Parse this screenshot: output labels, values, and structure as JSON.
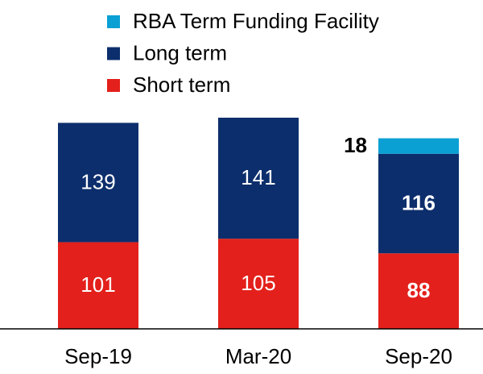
{
  "chart_data": {
    "type": "stacked_bar",
    "categories": [
      "Sep-19",
      "Mar-20",
      "Sep-20"
    ],
    "series": [
      {
        "name": "Short term",
        "color": "#e3201b",
        "values": [
          101,
          105,
          88
        ]
      },
      {
        "name": "Long term",
        "color": "#0c2e6c",
        "values": [
          139,
          141,
          116
        ]
      },
      {
        "name": "RBA Term Funding Facility",
        "color": "#0aa0d4",
        "values": [
          null,
          null,
          18
        ]
      }
    ],
    "bold_labels": [
      false,
      false,
      true
    ],
    "legend": "top"
  }
}
